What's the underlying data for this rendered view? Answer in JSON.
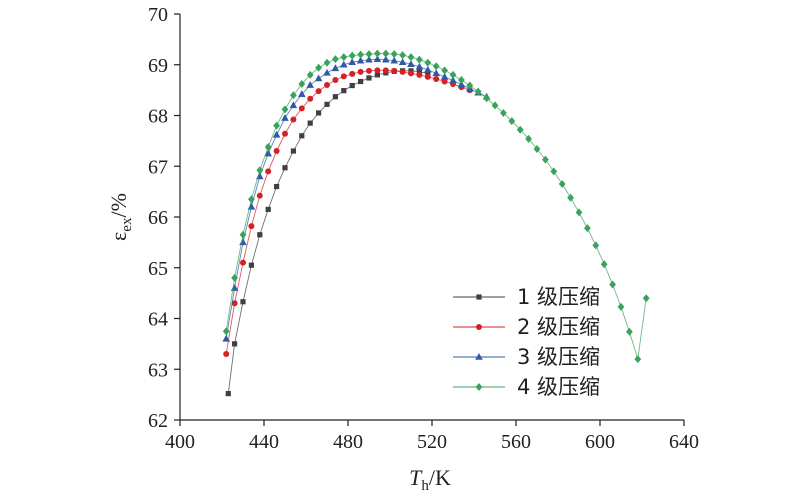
{
  "chart_data": {
    "type": "line",
    "xlabel": {
      "main": "T",
      "sub": "h",
      "unit": "/K"
    },
    "ylabel": {
      "main": "ε",
      "sub": "ex",
      "unit": "/%"
    },
    "xlim": [
      400,
      640
    ],
    "ylim": [
      62,
      70
    ],
    "xticks": [
      "400",
      "440",
      "480",
      "520",
      "560",
      "600",
      "640"
    ],
    "yticks": [
      "62",
      "63",
      "64",
      "65",
      "66",
      "67",
      "68",
      "69",
      "70"
    ],
    "grid": false,
    "legend_position": "bottom-right",
    "series": [
      {
        "name": "1 级压缩",
        "color": "#404040",
        "marker": "square",
        "x": [
          423,
          426,
          430,
          434,
          438,
          442,
          446,
          450,
          454,
          458,
          462,
          466,
          470,
          474,
          478,
          482,
          486,
          490,
          494,
          498,
          502,
          506,
          510,
          514,
          518
        ],
        "y": [
          62.52,
          63.5,
          64.33,
          65.05,
          65.65,
          66.15,
          66.6,
          66.97,
          67.3,
          67.6,
          67.85,
          68.05,
          68.22,
          68.37,
          68.49,
          68.59,
          68.67,
          68.74,
          68.8,
          68.84,
          68.87,
          68.88,
          68.88,
          68.86,
          68.83
        ]
      },
      {
        "name": "2 级压缩",
        "color": "#d42127",
        "marker": "circle",
        "x": [
          422,
          426,
          430,
          434,
          438,
          442,
          446,
          450,
          454,
          458,
          462,
          466,
          470,
          474,
          478,
          482,
          486,
          490,
          494,
          498,
          502,
          506,
          510,
          514,
          518,
          522,
          526,
          530,
          534,
          538
        ],
        "y": [
          63.3,
          64.3,
          65.1,
          65.82,
          66.42,
          66.9,
          67.3,
          67.64,
          67.92,
          68.14,
          68.33,
          68.48,
          68.6,
          68.7,
          68.77,
          68.82,
          68.86,
          68.88,
          68.89,
          68.89,
          68.88,
          68.86,
          68.83,
          68.8,
          68.76,
          68.72,
          68.67,
          68.62,
          68.56,
          68.5
        ]
      },
      {
        "name": "3 级压缩",
        "color": "#2f5aa7",
        "marker": "triangle",
        "x": [
          422,
          426,
          430,
          434,
          438,
          442,
          446,
          450,
          454,
          458,
          462,
          466,
          470,
          474,
          478,
          482,
          486,
          490,
          494,
          498,
          502,
          506,
          510,
          514,
          518,
          522,
          526,
          530,
          534,
          538,
          542,
          546
        ],
        "y": [
          63.6,
          64.6,
          65.5,
          66.2,
          66.8,
          67.25,
          67.62,
          67.95,
          68.2,
          68.42,
          68.6,
          68.73,
          68.84,
          68.93,
          69.0,
          69.05,
          69.08,
          69.1,
          69.11,
          69.1,
          69.08,
          69.05,
          69.01,
          68.96,
          68.9,
          68.83,
          68.76,
          68.69,
          68.61,
          68.53,
          68.45,
          68.37
        ]
      },
      {
        "name": "4 级压缩",
        "color": "#3aa35b",
        "marker": "diamond",
        "x": [
          422,
          426,
          430,
          434,
          438,
          442,
          446,
          450,
          454,
          458,
          462,
          466,
          470,
          474,
          478,
          482,
          486,
          490,
          494,
          498,
          502,
          506,
          510,
          514,
          518,
          522,
          526,
          530,
          534,
          538,
          542,
          546,
          550,
          554,
          558,
          562,
          566,
          570,
          574,
          578,
          582,
          586,
          590,
          594,
          598,
          602,
          606,
          610,
          614,
          618,
          622
        ],
        "y": [
          63.75,
          64.8,
          65.65,
          66.35,
          66.92,
          67.38,
          67.8,
          68.12,
          68.4,
          68.62,
          68.8,
          68.94,
          69.04,
          69.11,
          69.15,
          69.18,
          69.2,
          69.21,
          69.22,
          69.22,
          69.21,
          69.19,
          69.15,
          69.1,
          69.04,
          68.97,
          68.89,
          68.8,
          68.7,
          68.59,
          68.47,
          68.34,
          68.2,
          68.05,
          67.89,
          67.72,
          67.54,
          67.34,
          67.13,
          66.9,
          66.65,
          66.38,
          66.09,
          65.78,
          65.44,
          65.07,
          64.67,
          64.23,
          63.74,
          63.2,
          64.4
        ]
      }
    ]
  }
}
